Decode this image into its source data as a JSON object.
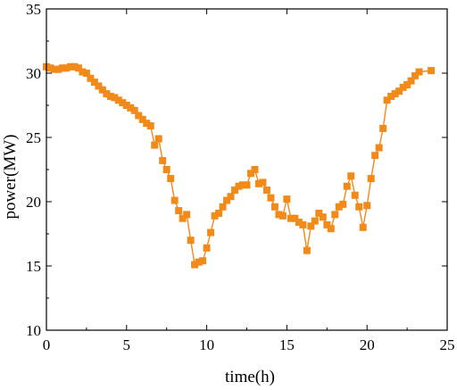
{
  "chart_data": {
    "type": "line",
    "xlabel": "time(h)",
    "ylabel": "power(MW)",
    "xlim": [
      0,
      25
    ],
    "ylim": [
      10,
      35
    ],
    "xticks": [
      0,
      5,
      10,
      15,
      20,
      25
    ],
    "yticks": [
      10,
      15,
      20,
      25,
      30,
      35
    ],
    "grid": false,
    "marker": "square",
    "color": "#F28A1A",
    "series": [
      {
        "x": [
          0,
          0.25,
          0.5,
          0.75,
          1.0,
          1.25,
          1.5,
          1.75,
          2.0,
          2.25,
          2.5,
          2.75,
          3.0,
          3.25,
          3.5,
          3.75,
          4.0,
          4.25,
          4.5,
          4.75,
          5.0,
          5.25,
          5.5,
          5.75,
          6.0,
          6.25,
          6.5,
          6.75,
          7.0,
          7.25,
          7.5,
          7.75,
          8.0,
          8.25,
          8.5,
          8.75,
          9.0,
          9.25,
          9.5,
          9.75,
          10.0,
          10.25,
          10.5,
          10.75,
          11.0,
          11.25,
          11.5,
          11.75,
          12.0,
          12.25,
          12.5,
          12.75,
          13.0,
          13.25,
          13.5,
          13.75,
          14.0,
          14.25,
          14.5,
          14.75,
          15.0,
          15.25,
          15.5,
          15.75,
          16.0,
          16.25,
          16.5,
          16.75,
          17.0,
          17.25,
          17.5,
          17.75,
          18.0,
          18.25,
          18.5,
          18.75,
          19.0,
          19.25,
          19.5,
          19.75,
          20.0,
          20.25,
          20.5,
          20.75,
          21.0,
          21.25,
          21.5,
          21.75,
          22.0,
          22.25,
          22.5,
          22.75,
          23.0,
          23.25,
          24.0
        ],
        "values": [
          30.5,
          30.4,
          30.3,
          30.3,
          30.4,
          30.4,
          30.5,
          30.5,
          30.4,
          30.1,
          30.0,
          29.6,
          29.3,
          29.0,
          28.7,
          28.4,
          28.2,
          28.1,
          27.9,
          27.7,
          27.5,
          27.3,
          27.1,
          26.7,
          26.4,
          26.1,
          25.9,
          24.4,
          24.9,
          23.2,
          22.5,
          21.8,
          20.1,
          19.3,
          18.7,
          19.0,
          17.0,
          15.1,
          15.3,
          15.4,
          16.4,
          17.6,
          18.9,
          19.1,
          19.6,
          20.1,
          20.4,
          20.9,
          21.2,
          21.3,
          21.3,
          22.2,
          22.5,
          21.4,
          21.5,
          20.9,
          20.3,
          19.6,
          19.0,
          18.9,
          20.2,
          18.7,
          18.7,
          18.4,
          18.2,
          16.2,
          18.1,
          18.5,
          19.1,
          18.8,
          18.2,
          17.9,
          19.0,
          19.6,
          19.8,
          21.2,
          22.0,
          20.5,
          19.6,
          18.0,
          19.7,
          21.8,
          23.6,
          24.2,
          25.7,
          27.9,
          28.2,
          28.4,
          28.6,
          28.9,
          29.1,
          29.4,
          29.8,
          30.1,
          30.2
        ]
      }
    ]
  }
}
